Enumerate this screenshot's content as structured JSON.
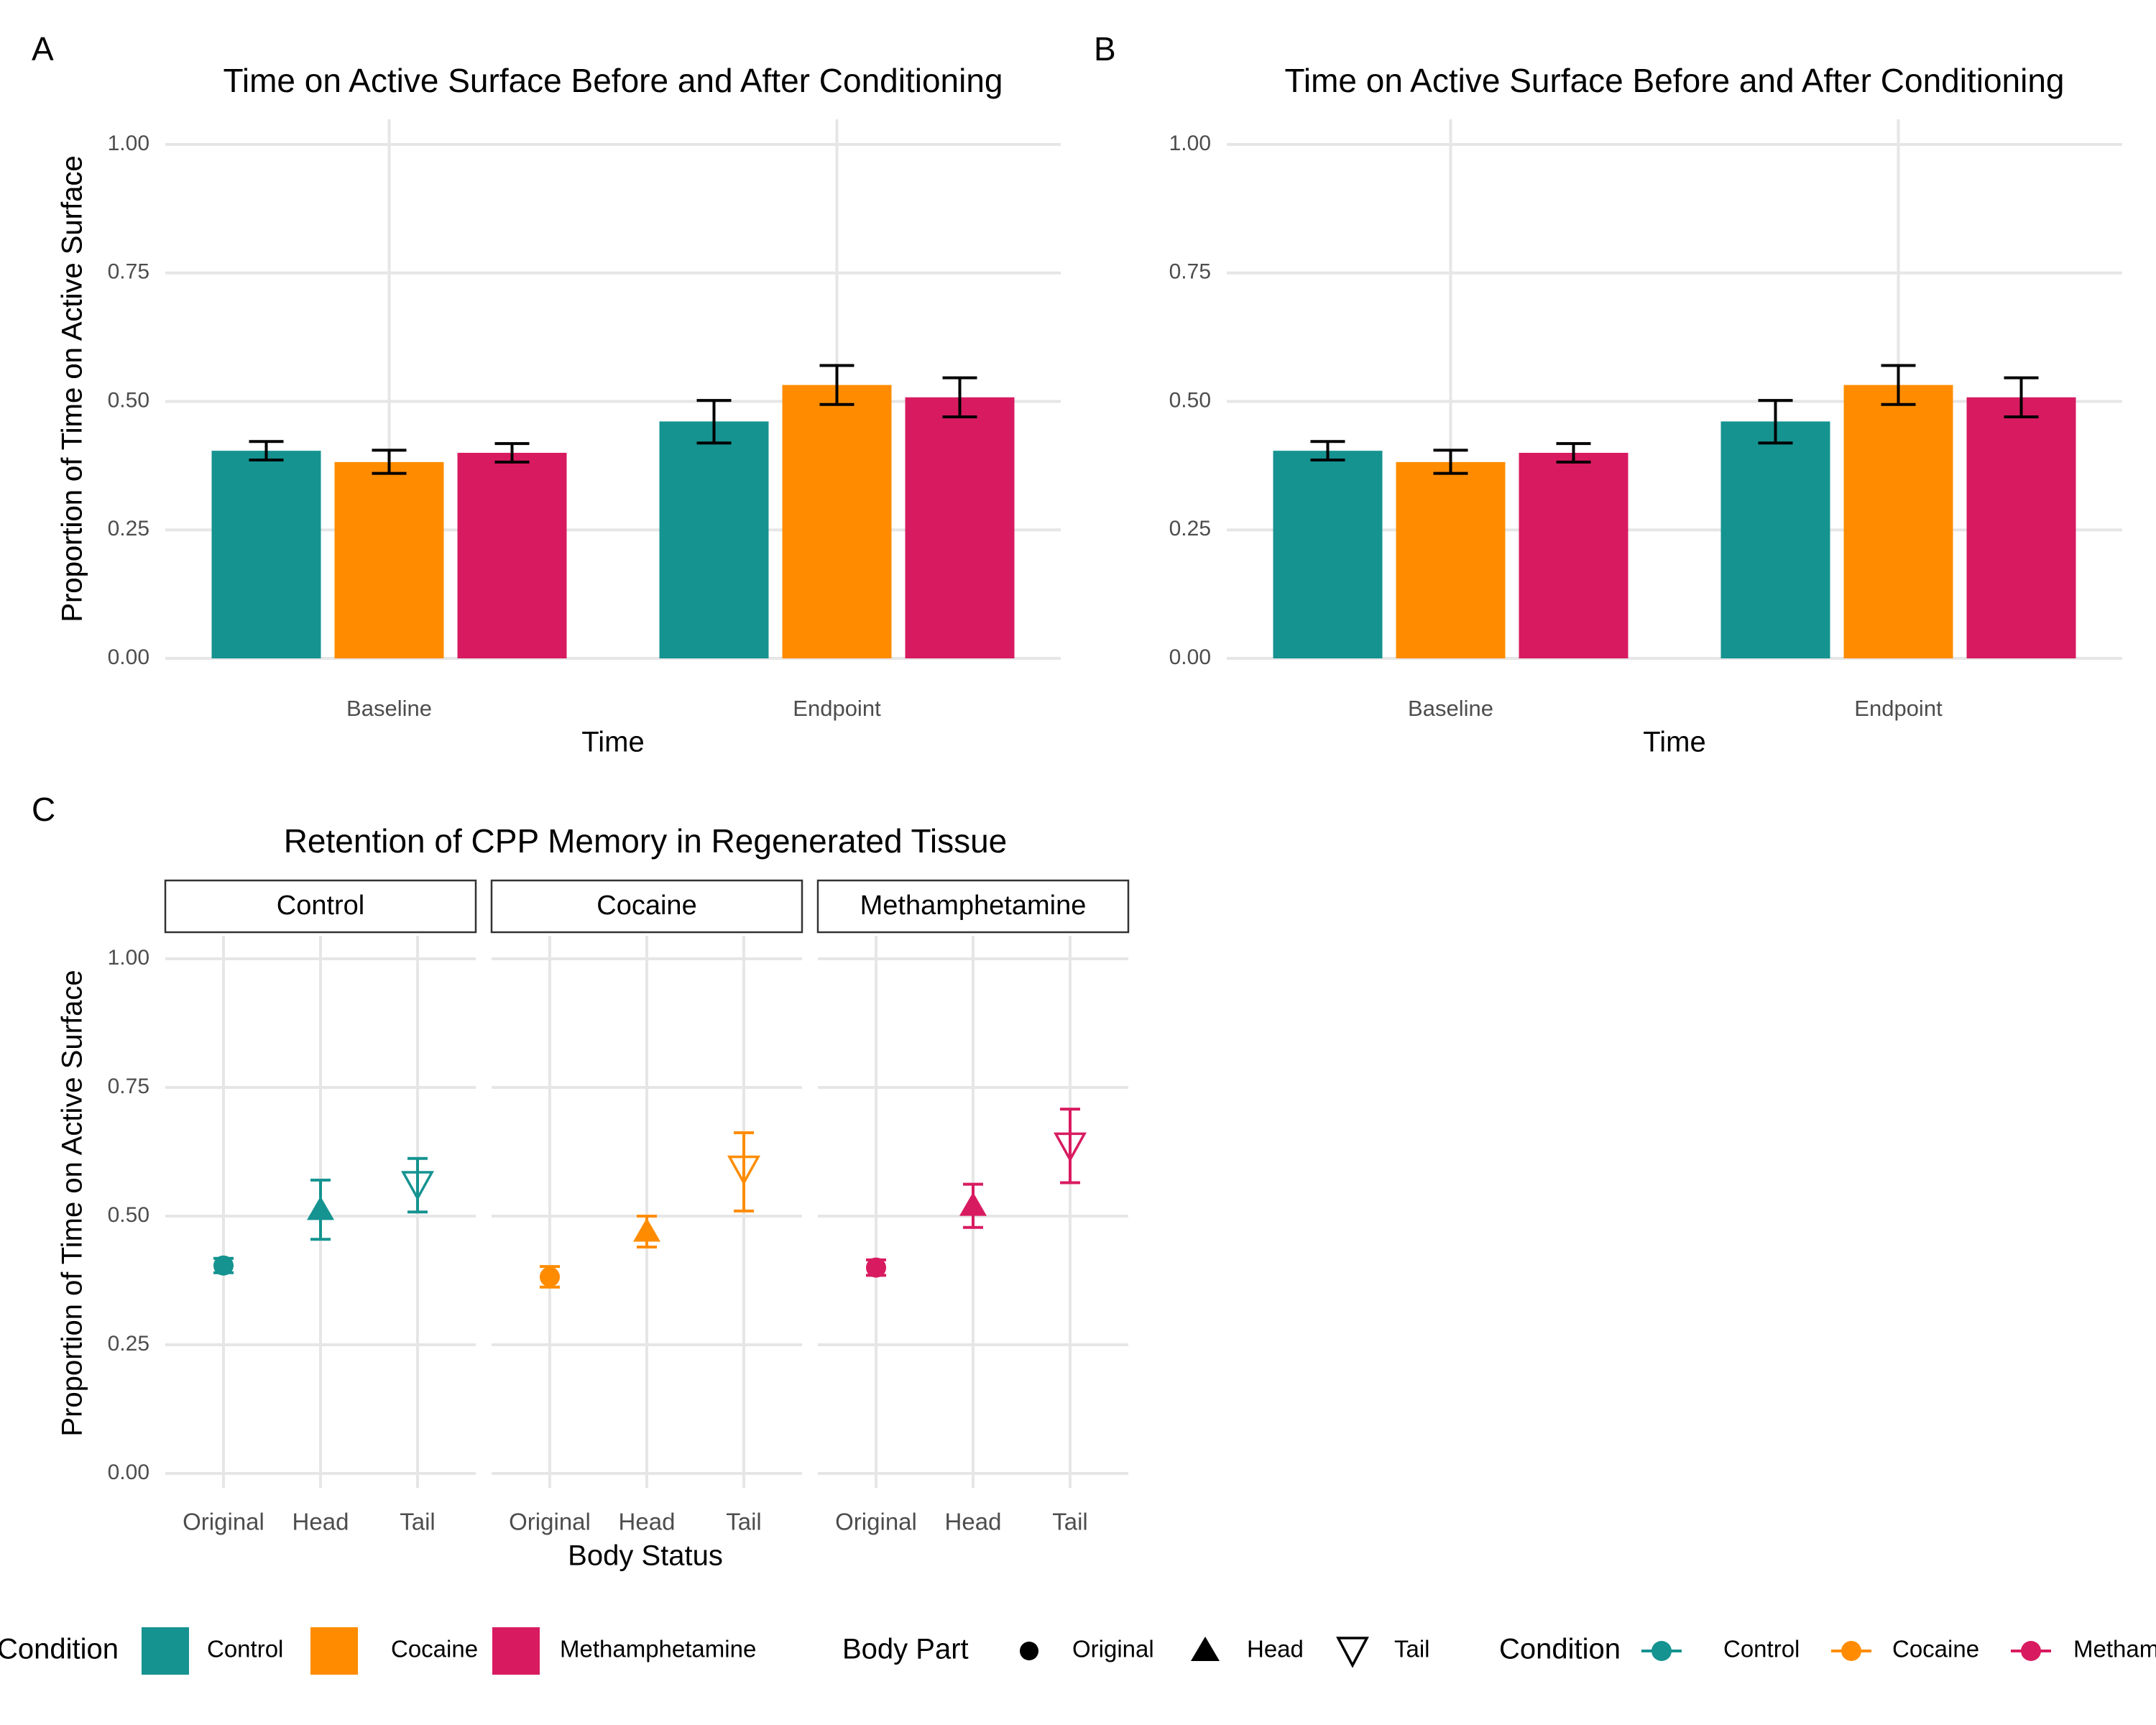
{
  "colors": {
    "Control": "#159390",
    "Cocaine": "#FF8C00",
    "Methamphetamine": "#D81B60",
    "grid": "#e6e6e6",
    "text": "#000000",
    "tick": "#4d4d4d"
  },
  "chart_data": [
    {
      "panel": "A",
      "type": "bar",
      "title": "Time on Active Surface Before and After Conditioning",
      "xlabel": "Time",
      "ylabel": "Proportion of Time on Active Surface",
      "ylim": [
        0,
        1.05
      ],
      "yticks": [
        "0.00",
        "0.25",
        "0.50",
        "0.75",
        "1.00"
      ],
      "categories": [
        "Baseline",
        "Endpoint"
      ],
      "series": [
        {
          "name": "Control",
          "values": [
            0.404,
            0.461
          ],
          "err_low": [
            0.386,
            0.419
          ],
          "err_high": [
            0.422,
            0.502
          ]
        },
        {
          "name": "Cocaine",
          "values": [
            0.382,
            0.532
          ],
          "err_low": [
            0.36,
            0.494
          ],
          "err_high": [
            0.405,
            0.57
          ]
        },
        {
          "name": "Methamphetamine",
          "values": [
            0.4,
            0.508
          ],
          "err_low": [
            0.382,
            0.47
          ],
          "err_high": [
            0.418,
            0.546
          ]
        }
      ],
      "grid": true
    },
    {
      "panel": "B",
      "type": "bar",
      "title": "Time on Active Surface Before and After Conditioning",
      "xlabel": "Time",
      "ylabel": "Proportion of Time on Active Surface",
      "ylim": [
        0,
        1.05
      ],
      "yticks": [
        "0.00",
        "0.25",
        "0.50",
        "0.75",
        "1.00"
      ],
      "categories": [
        "Baseline",
        "Endpoint"
      ],
      "series": [
        {
          "name": "Control",
          "values": [
            0.404,
            0.461
          ],
          "err_low": [
            0.386,
            0.419
          ],
          "err_high": [
            0.422,
            0.502
          ]
        },
        {
          "name": "Cocaine",
          "values": [
            0.382,
            0.532
          ],
          "err_low": [
            0.36,
            0.494
          ],
          "err_high": [
            0.405,
            0.57
          ]
        },
        {
          "name": "Methamphetamine",
          "values": [
            0.4,
            0.508
          ],
          "err_low": [
            0.382,
            0.47
          ],
          "err_high": [
            0.418,
            0.546
          ]
        }
      ],
      "grid": true
    },
    {
      "panel": "C",
      "type": "scatter",
      "title": "Retention of CPP Memory in Regenerated Tissue",
      "xlabel": "Body Status",
      "ylabel": "Proportion of Time on Active Surface",
      "ylim": [
        0,
        1.05
      ],
      "yticks": [
        "0.00",
        "0.25",
        "0.50",
        "0.75",
        "1.00"
      ],
      "categories": [
        "Original",
        "Head",
        "Tail"
      ],
      "facets": [
        {
          "name": "Control",
          "values": [
            0.404,
            0.512,
            0.56
          ],
          "err_low": [
            0.39,
            0.455,
            0.508
          ],
          "err_high": [
            0.418,
            0.57,
            0.612
          ]
        },
        {
          "name": "Cocaine",
          "values": [
            0.382,
            0.47,
            0.59
          ],
          "err_low": [
            0.362,
            0.44,
            0.51
          ],
          "err_high": [
            0.402,
            0.5,
            0.662
          ]
        },
        {
          "name": "Methamphetamine",
          "values": [
            0.4,
            0.52,
            0.635
          ],
          "err_low": [
            0.385,
            0.478,
            0.565
          ],
          "err_high": [
            0.415,
            0.562,
            0.708
          ]
        }
      ],
      "grid": true
    }
  ],
  "legend": {
    "condition_title": "Condition",
    "condition_items": [
      "Control",
      "Cocaine",
      "Methamphetamine"
    ],
    "bodypart_title": "Body Part",
    "bodypart_items": [
      "Original",
      "Head",
      "Tail"
    ],
    "condition2_title": "Condition",
    "condition2_items": [
      "Control",
      "Cocaine",
      "Methamphetamine"
    ]
  }
}
